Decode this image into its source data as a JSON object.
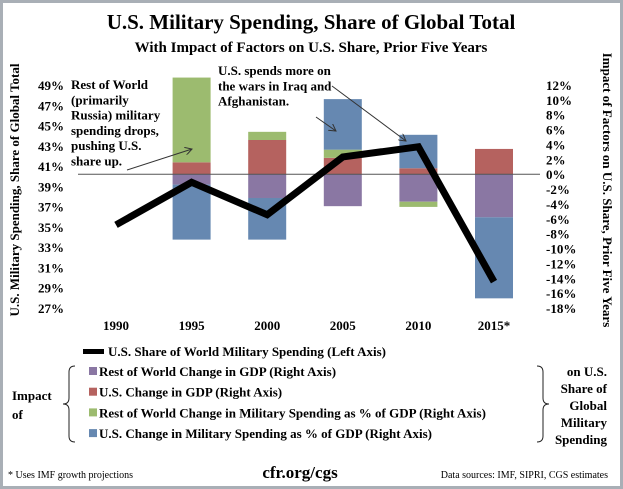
{
  "chart_data": {
    "type": "bar",
    "title": "U.S. Military Spending, Share of Global Total",
    "subtitle": "With Impact of Factors on U.S. Share, Prior Five Years",
    "ylabel_left": "U.S. Military Spending, Share of Global Total",
    "ylabel_right": "Impact of Factors on U.S. Share, Prior Five Years",
    "categories": [
      "1990",
      "1995",
      "2000",
      "2005",
      "2010",
      "2015*"
    ],
    "ylim_left": [
      27,
      49
    ],
    "yticks_left": [
      "49%",
      "47%",
      "45%",
      "43%",
      "41%",
      "39%",
      "37%",
      "35%",
      "33%",
      "31%",
      "29%",
      "27%"
    ],
    "ylim_right": [
      -18,
      12
    ],
    "yticks_right": [
      "12%",
      "10%",
      "8%",
      "6%",
      "4%",
      "2%",
      "0%",
      "-2%",
      "-4%",
      "-6%",
      "-8%",
      "-10%",
      "-12%",
      "-14%",
      "-16%",
      "-18%"
    ],
    "line_series": {
      "name": "U.S. Share of World Military Spending (Left Axis)",
      "values": [
        35.2,
        39.4,
        36.2,
        41.9,
        42.9,
        29.6
      ],
      "color": "#000000"
    },
    "series": [
      {
        "name": "Rest of World Change in GDP (Right Axis)",
        "color": "#8a77a3",
        "values": [
          null,
          -1.4,
          -3.2,
          -4.3,
          -3.7,
          -5.8
        ]
      },
      {
        "name": "U.S. Change in GDP (Right Axis)",
        "color": "#b5625f",
        "values": [
          null,
          1.6,
          4.6,
          2.2,
          0.8,
          3.4
        ]
      },
      {
        "name": "Rest of World Change in Military Spending as % of GDP (Right Axis)",
        "color": "#9cbb6f",
        "values": [
          null,
          11.4,
          1.1,
          1.1,
          -0.7,
          0
        ]
      },
      {
        "name": "U.S. Change in Military Spending as % of GDP (Right Axis)",
        "color": "#6688b1",
        "values": [
          null,
          -7.4,
          -5.6,
          6.8,
          4.5,
          -10.9
        ]
      }
    ],
    "annotations": [
      "Rest of World (primarily Russia) military spending drops, pushing U.S. share up.",
      "U.S. spends more on the wars in Iraq and Afghanistan."
    ],
    "legend": {
      "placement": "bottom",
      "left_label": "Impact of",
      "right_label": "on U.S. Share of Global Military Spending"
    }
  },
  "annot1_lines": [
    "Rest of World",
    "(primarily",
    "Russia) military",
    "spending drops,",
    "pushing U.S.",
    "share up."
  ],
  "annot2_lines": [
    "U.S. spends more on",
    "the wars in Iraq and",
    "Afghanistan."
  ],
  "legend_left_lines": [
    "Impact",
    "of"
  ],
  "legend_right_lines": [
    "on U.S.",
    "Share of",
    "Global",
    "Military",
    "Spending"
  ],
  "footer": {
    "note": "* Uses IMF growth projections",
    "site": "cfr.org/cgs",
    "sources": "Data sources: IMF, SIPRI, CGS estimates"
  }
}
